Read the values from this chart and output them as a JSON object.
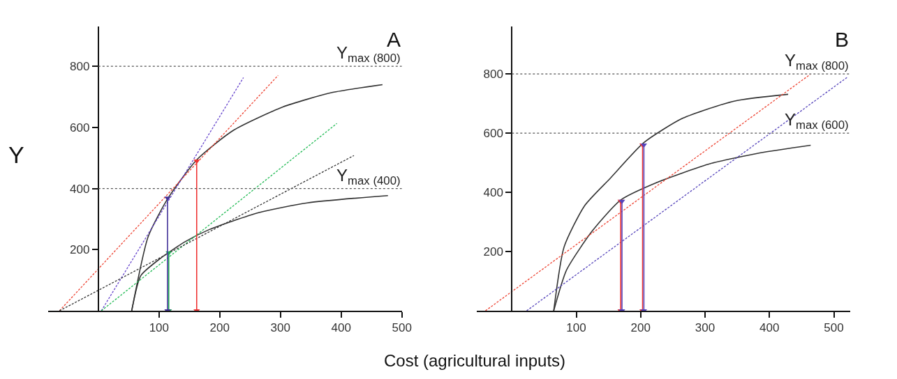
{
  "chart_data": [
    {
      "type": "line",
      "title": "A",
      "ylabel": "Y",
      "xlim": [
        -83,
        500
      ],
      "ylim": [
        0,
        930
      ],
      "xticks": [
        100,
        200,
        300,
        400,
        500
      ],
      "yticks": [
        200,
        400,
        600,
        800
      ],
      "series": [
        {
          "color": "#333333",
          "line_style": "solid",
          "x": [
            55,
            82,
            115,
            163,
            223,
            304,
            385,
            468
          ],
          "values": [
            0,
            242,
            369,
            496,
            591,
            667,
            714,
            740
          ]
        },
        {
          "color": "#333333",
          "line_style": "solid",
          "x": [
            55,
            70,
            102,
            143,
            183,
            264,
            344,
            477
          ],
          "values": [
            0,
            115,
            171,
            226,
            266,
            321,
            353,
            377
          ]
        },
        {
          "color": "#ee4433",
          "line_style": "dashed",
          "x": [
            -64,
            296
          ],
          "values": [
            0,
            770
          ]
        },
        {
          "color": "#6644cc",
          "line_style": "dashed",
          "x": [
            5,
            239
          ],
          "values": [
            0,
            763
          ]
        },
        {
          "color": "#22bb55",
          "line_style": "dashed",
          "x": [
            5,
            393
          ],
          "values": [
            0,
            613
          ]
        },
        {
          "color": "#333333",
          "line_style": "dashed",
          "x": [
            -64,
            421
          ],
          "values": [
            0,
            508
          ]
        },
        {
          "color": "#22aa55",
          "line_style": "solid",
          "marker": "triangle",
          "x": [
            116,
            116
          ],
          "values": [
            190,
            0
          ]
        },
        {
          "color": "#443399",
          "line_style": "solid",
          "marker": "triangle",
          "x": [
            114,
            114
          ],
          "values": [
            369,
            0
          ]
        },
        {
          "color": "#ee3333",
          "line_style": "solid",
          "marker": "triangle",
          "x": [
            162,
            162
          ],
          "values": [
            490,
            0
          ]
        }
      ],
      "ref_lines": [
        {
          "axis": "y",
          "value": 800,
          "label": "Y$_{max (800)}$",
          "color": "#555555",
          "line_style": "dotted"
        },
        {
          "axis": "y",
          "value": 400,
          "label": "Y$_{max (400)}$",
          "color": "#555555",
          "line_style": "dotted"
        }
      ]
    },
    {
      "type": "line",
      "title": "B",
      "xlabel": "Cost (agricultural inputs)",
      "xlim": [
        -55,
        525
      ],
      "ylim": [
        0,
        960
      ],
      "xticks": [
        100,
        200,
        300,
        400,
        500
      ],
      "yticks": [
        200,
        400,
        600,
        800
      ],
      "series": [
        {
          "color": "#333333",
          "line_style": "solid",
          "x": [
            65,
            81,
            113,
            153,
            205,
            265,
            345,
            429
          ],
          "values": [
            0,
            215,
            355,
            448,
            568,
            650,
            708,
            731
          ]
        },
        {
          "color": "#333333",
          "line_style": "solid",
          "x": [
            65,
            85,
            125,
            169,
            225,
            305,
            385,
            464
          ],
          "values": [
            0,
            138,
            270,
            374,
            433,
            495,
            533,
            559
          ]
        },
        {
          "color": "#ee4433",
          "line_style": "dashed",
          "x": [
            -41,
            463
          ],
          "values": [
            0,
            798
          ]
        },
        {
          "color": "#5544bb",
          "line_style": "dashed",
          "x": [
            23,
            521
          ],
          "values": [
            0,
            789
          ]
        },
        {
          "color": "#ee3333",
          "line_style": "solid",
          "marker": "triangle",
          "x": [
            169,
            169
          ],
          "values": [
            370,
            0
          ]
        },
        {
          "color": "#5544bb",
          "line_style": "solid",
          "marker": "triangle",
          "x": [
            171,
            171
          ],
          "values": [
            370,
            0
          ]
        },
        {
          "color": "#ee3333",
          "line_style": "solid",
          "marker": "triangle",
          "x": [
            203,
            203
          ],
          "values": [
            560,
            0
          ]
        },
        {
          "color": "#5544bb",
          "line_style": "solid",
          "marker": "triangle",
          "x": [
            205,
            205
          ],
          "values": [
            560,
            0
          ]
        }
      ],
      "ref_lines": [
        {
          "axis": "y",
          "value": 800,
          "label": "Y$_{max (800)}$",
          "color": "#555555",
          "line_style": "dotted"
        },
        {
          "axis": "y",
          "value": 600,
          "label": "Y$_{max (600)}$",
          "color": "#555555",
          "line_style": "dotted"
        }
      ]
    }
  ]
}
